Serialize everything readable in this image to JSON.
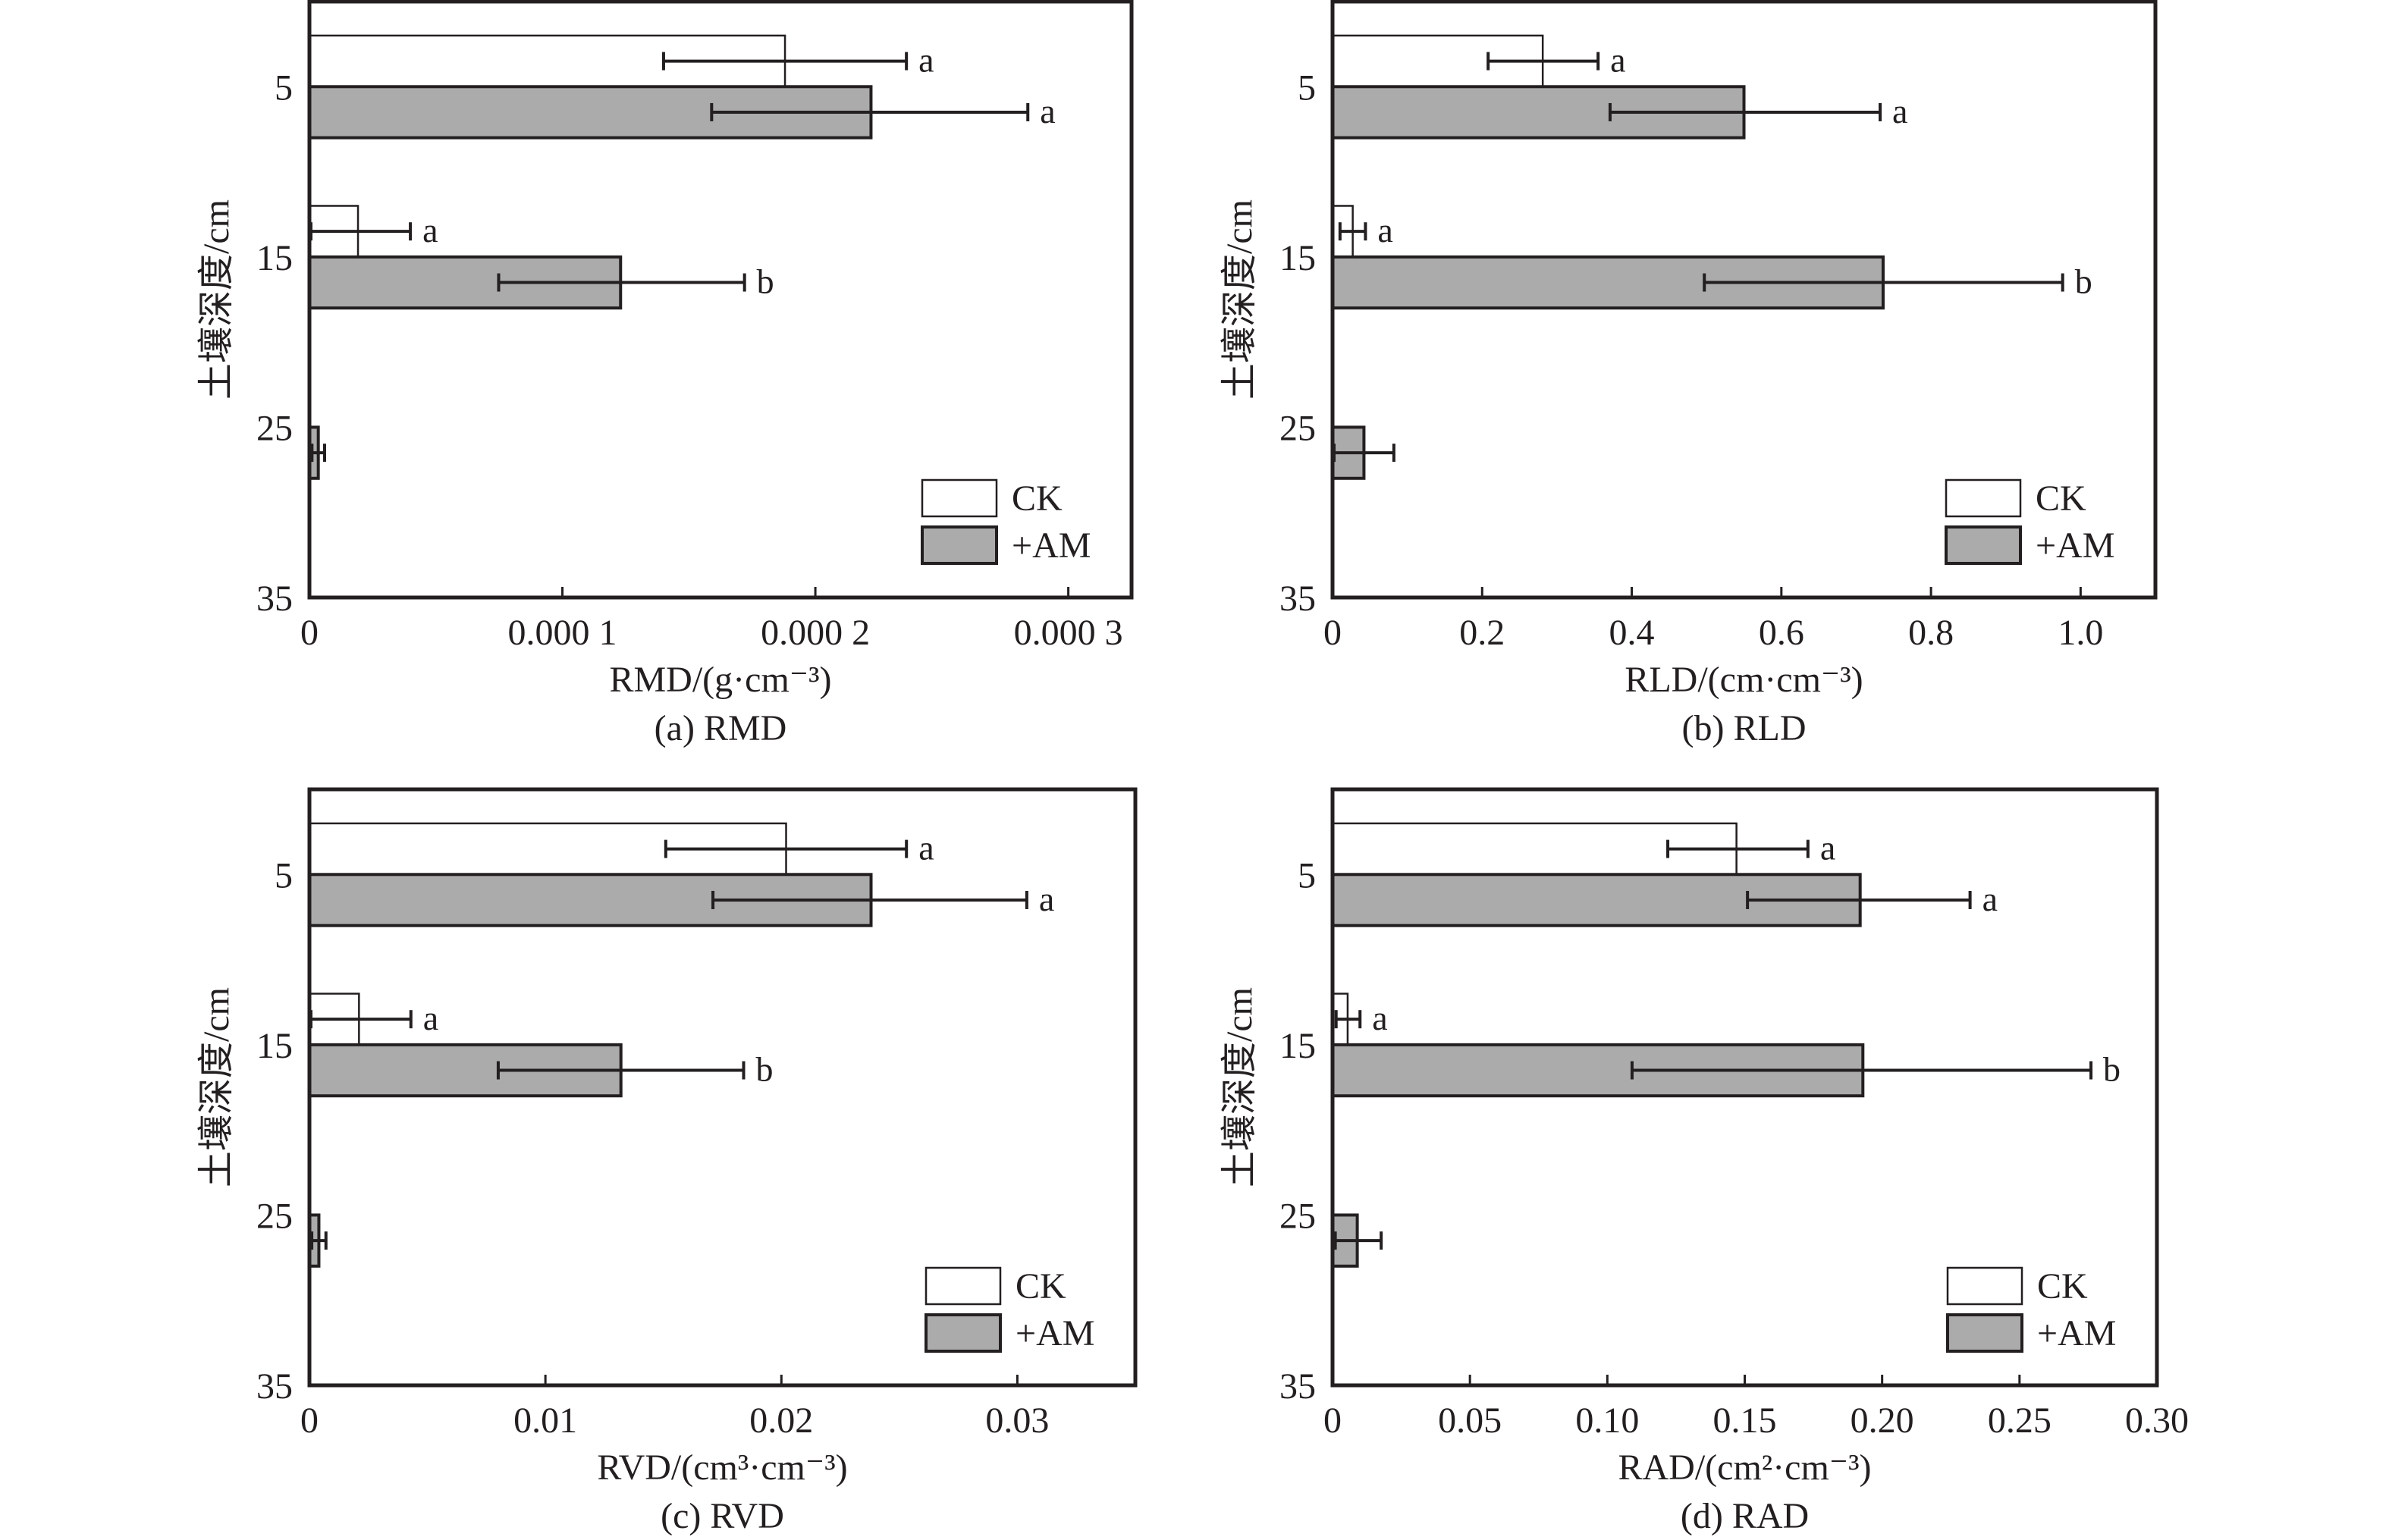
{
  "figure": {
    "y_axis_label": "土壤深度/cm",
    "legend": [
      {
        "label": "CK",
        "fill": "#ffffff"
      },
      {
        "label": "+AM",
        "fill": "#ababab"
      }
    ]
  },
  "chart_data": [
    {
      "type": "bar",
      "orientation": "horizontal",
      "caption": "(a) RMD",
      "xlabel": "RMD/(g·cm⁻³)",
      "ylabel": "土壤深度/cm",
      "xlim": [
        0,
        0.000325
      ],
      "x_ticks": [
        0,
        0.0001,
        0.0002,
        0.0003
      ],
      "x_tick_labels": [
        "0",
        "0.000 1",
        "0.000 2",
        "0.000 3"
      ],
      "ylim": [
        0,
        35
      ],
      "y_ticks": [
        5,
        15,
        25,
        35
      ],
      "y_tick_labels": [
        "5",
        "15",
        "25",
        "35"
      ],
      "categories": [
        5,
        15,
        25
      ],
      "legend_position": "bottom-right",
      "grid": false,
      "series": [
        {
          "name": "CK",
          "values": [
            0.000188,
            1.92e-05,
            0
          ],
          "err_low": [
            0.00014,
            0.0,
            null
          ],
          "err_high": [
            0.000236,
            3.99e-05,
            null
          ],
          "significance": [
            "a",
            "a",
            ""
          ]
        },
        {
          "name": "+AM",
          "values": [
            0.000222,
            0.000123,
            3.5e-06
          ],
          "err_low": [
            0.000159,
            7.48e-05,
            1e-06
          ],
          "err_high": [
            0.000284,
            0.000172,
            6e-06
          ],
          "significance": [
            "a",
            "b",
            ""
          ]
        }
      ]
    },
    {
      "type": "bar",
      "orientation": "horizontal",
      "caption": "(b) RLD",
      "xlabel": "RLD/(cm·cm⁻³)",
      "ylabel": "土壤深度/cm",
      "xlim": [
        0,
        1.1
      ],
      "x_ticks": [
        0,
        0.2,
        0.4,
        0.6,
        0.8,
        1.0
      ],
      "x_tick_labels": [
        "0",
        "0.2",
        "0.4",
        "0.6",
        "0.8",
        "1.0"
      ],
      "ylim": [
        0,
        35
      ],
      "y_ticks": [
        5,
        15,
        25,
        35
      ],
      "y_tick_labels": [
        "5",
        "15",
        "25",
        "35"
      ],
      "categories": [
        5,
        15,
        25
      ],
      "legend_position": "bottom-right",
      "grid": false,
      "series": [
        {
          "name": "CK",
          "values": [
            0.281,
            0.027,
            0
          ],
          "err_low": [
            0.208,
            0.01,
            null
          ],
          "err_high": [
            0.355,
            0.044,
            null
          ],
          "significance": [
            "a",
            "a",
            ""
          ]
        },
        {
          "name": "+AM",
          "values": [
            0.55,
            0.736,
            0.042
          ],
          "err_low": [
            0.371,
            0.497,
            0.002
          ],
          "err_high": [
            0.732,
            0.976,
            0.082
          ],
          "significance": [
            "a",
            "b",
            ""
          ]
        }
      ]
    },
    {
      "type": "bar",
      "orientation": "horizontal",
      "caption": "(c) RVD",
      "xlabel": "RVD/(cm³·cm⁻³)",
      "ylabel": "土壤深度/cm",
      "xlim": [
        0,
        0.035
      ],
      "x_ticks": [
        0,
        0.01,
        0.02,
        0.03
      ],
      "x_tick_labels": [
        "0",
        "0.01",
        "0.02",
        "0.03"
      ],
      "ylim": [
        0,
        35
      ],
      "y_ticks": [
        5,
        15,
        25,
        35
      ],
      "y_tick_labels": [
        "5",
        "15",
        "25",
        "35"
      ],
      "categories": [
        5,
        15,
        25
      ],
      "legend_position": "bottom-right",
      "grid": false,
      "series": [
        {
          "name": "CK",
          "values": [
            0.0202,
            0.0021,
            0
          ],
          "err_low": [
            0.0151,
            0.0,
            null
          ],
          "err_high": [
            0.0253,
            0.0043,
            null
          ],
          "significance": [
            "a",
            "a",
            ""
          ]
        },
        {
          "name": "+AM",
          "values": [
            0.0238,
            0.0132,
            0.0004
          ],
          "err_low": [
            0.0171,
            0.008,
            0.0001
          ],
          "err_high": [
            0.0304,
            0.0184,
            0.0007
          ],
          "significance": [
            "a",
            "b",
            ""
          ]
        }
      ]
    },
    {
      "type": "bar",
      "orientation": "horizontal",
      "caption": "(d) RAD",
      "xlabel": "RAD/(cm²·cm⁻³)",
      "ylabel": "土壤深度/cm",
      "xlim": [
        0,
        0.3
      ],
      "x_ticks": [
        0,
        0.05,
        0.1,
        0.15,
        0.2,
        0.25,
        0.3
      ],
      "x_tick_labels": [
        "0",
        "0.05",
        "0.10",
        "0.15",
        "0.20",
        "0.25",
        "0.30"
      ],
      "ylim": [
        0,
        35
      ],
      "y_ticks": [
        5,
        15,
        25,
        35
      ],
      "y_tick_labels": [
        "5",
        "15",
        "25",
        "35"
      ],
      "categories": [
        5,
        15,
        25
      ],
      "legend_position": "bottom-right",
      "grid": false,
      "series": [
        {
          "name": "CK",
          "values": [
            0.147,
            0.0055,
            0
          ],
          "err_low": [
            0.122,
            0.0013,
            null
          ],
          "err_high": [
            0.173,
            0.01,
            null
          ],
          "significance": [
            "a",
            "a",
            ""
          ]
        },
        {
          "name": "+AM",
          "values": [
            0.192,
            0.193,
            0.009
          ],
          "err_low": [
            0.151,
            0.109,
            0.001
          ],
          "err_high": [
            0.232,
            0.276,
            0.0177
          ],
          "significance": [
            "a",
            "b",
            ""
          ]
        }
      ]
    }
  ]
}
